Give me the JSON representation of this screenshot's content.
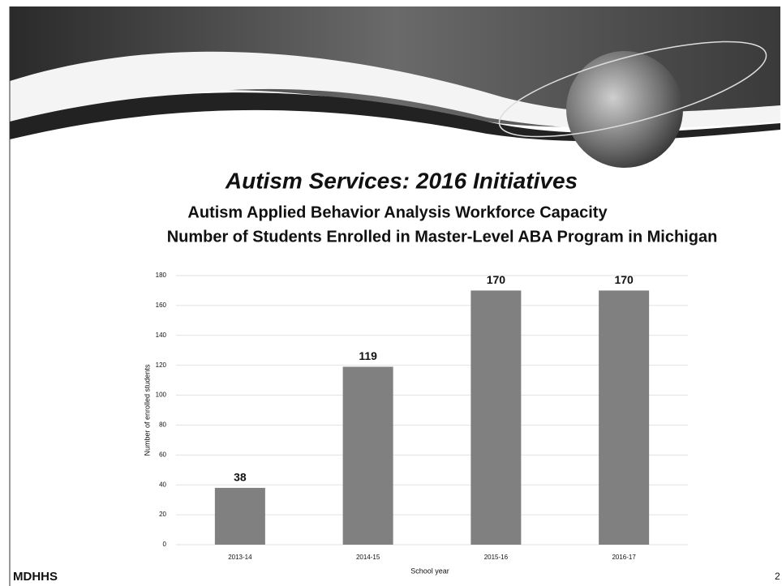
{
  "slide": {
    "title": "Autism Services:  2016 Initiatives",
    "subtitle_lines": [
      "Autism Applied Behavior Analysis Workforce Capacity",
      "Number of Students Enrolled in Master-Level ABA Program in Michigan"
    ],
    "logo": "MDHHS",
    "page_number": 2
  },
  "chart_data": {
    "type": "bar",
    "categories": [
      "2013-14",
      "2014-15",
      "2015-16",
      "2016-17"
    ],
    "values": [
      38,
      119,
      170,
      170
    ],
    "color": "#808080",
    "x_label": "School year",
    "y_label": "Number of enrolled students",
    "ylim": [
      0,
      180
    ],
    "yticks": [
      0,
      20,
      40,
      60,
      80,
      100,
      120,
      140,
      160,
      180
    ],
    "grid": true
  }
}
